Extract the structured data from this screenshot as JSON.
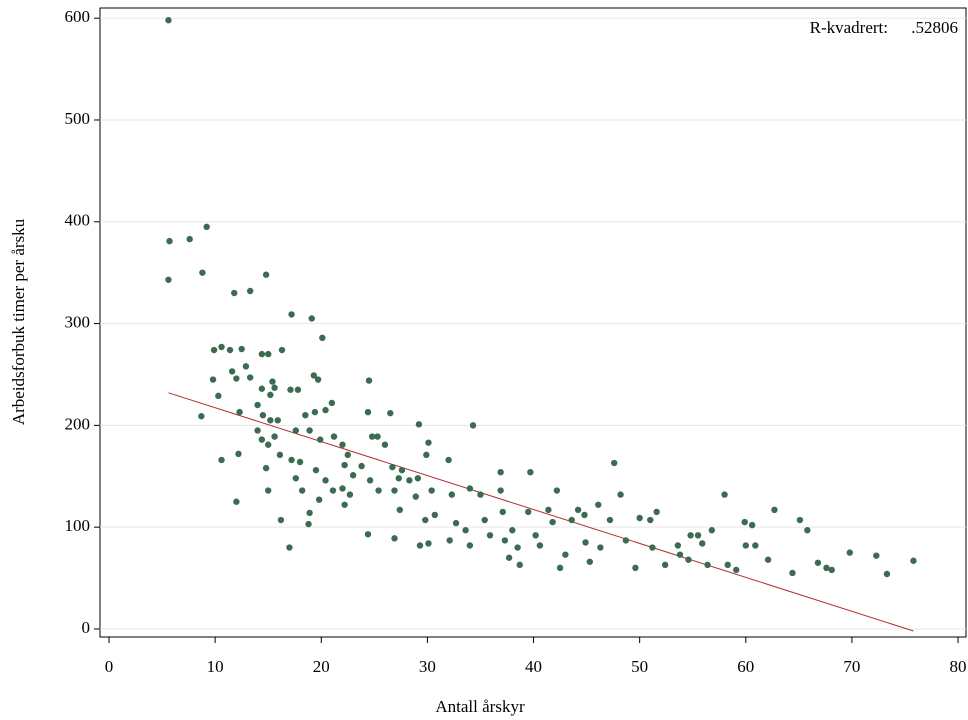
{
  "chart_data": {
    "type": "scatter",
    "x_label": "Antall årskyr",
    "y_label": "Arbeidsforbuk timer per årsku",
    "annotation_label": "R-kvadrert:",
    "annotation_value": ".52806",
    "xlim": [
      -0.85,
      80.75
    ],
    "ylim": [
      -7.9,
      610
    ],
    "xticks": [
      0,
      10,
      20,
      30,
      40,
      50,
      60,
      70,
      80
    ],
    "yticks": [
      0,
      100,
      200,
      300,
      400,
      500,
      600
    ],
    "grid": true,
    "color": "#3b6b50",
    "x": [
      5.6,
      5.7,
      5.6,
      7.6,
      9.2,
      8.8,
      8.7,
      9.9,
      10.6,
      9.8,
      10.3,
      10.6,
      11.8,
      13.3,
      14.8,
      11.4,
      12.5,
      12.9,
      11.6,
      12.0,
      13.3,
      12.3,
      12.2,
      12.0,
      14.4,
      15.0,
      16.3,
      14.4,
      15.2,
      15.4,
      15.6,
      14.0,
      14.5,
      15.2,
      15.9,
      14.0,
      14.4,
      15.0,
      15.6,
      14.8,
      15.0,
      16.1,
      16.2,
      17.0,
      17.2,
      17.1,
      17.8,
      17.6,
      17.2,
      18.0,
      17.6,
      18.2,
      19.1,
      20.1,
      19.3,
      19.7,
      18.5,
      19.4,
      20.4,
      21.0,
      18.9,
      19.9,
      21.2,
      19.5,
      20.4,
      21.1,
      19.8,
      18.8,
      18.9,
      22.0,
      22.5,
      22.2,
      23.0,
      22.0,
      22.7,
      22.2,
      24.5,
      24.4,
      24.8,
      25.3,
      23.8,
      24.6,
      25.4,
      24.4,
      26.5,
      26.0,
      26.7,
      27.3,
      26.9,
      27.4,
      26.9,
      27.6,
      28.3,
      29.1,
      28.9,
      29.2,
      30.1,
      29.9,
      30.4,
      29.3,
      30.1,
      29.8,
      30.7,
      32.0,
      32.3,
      32.1,
      32.7,
      34.3,
      34.0,
      33.6,
      34.0,
      35.0,
      35.4,
      35.9,
      36.9,
      36.9,
      37.1,
      37.3,
      37.7,
      38.0,
      38.5,
      38.7,
      39.7,
      39.5,
      40.2,
      40.6,
      41.4,
      41.8,
      42.2,
      42.5,
      43.0,
      43.6,
      44.2,
      44.9,
      45.3,
      46.1,
      46.3,
      47.2,
      47.6,
      48.2,
      48.7,
      49.6,
      50.0,
      51.0,
      51.2,
      51.6,
      52.4,
      53.6,
      53.8,
      54.6,
      54.8,
      55.5,
      56.4,
      56.8,
      58.0,
      58.3,
      59.1,
      59.9,
      60.0,
      60.6,
      60.9,
      62.1,
      62.7,
      64.4,
      65.1,
      65.8,
      66.8,
      67.6,
      68.1,
      69.8,
      72.3,
      73.3,
      75.8,
      55.9,
      44.8
    ],
    "values": [
      598,
      381,
      343,
      383,
      395,
      350,
      209,
      274,
      277,
      245,
      229,
      166,
      330,
      332,
      348,
      274,
      275,
      258,
      253,
      246,
      247,
      213,
      172,
      125,
      270,
      270,
      274,
      236,
      230,
      243,
      237,
      220,
      210,
      205,
      205,
      195,
      186,
      181,
      189,
      158,
      136,
      171,
      107,
      80,
      309,
      235,
      235,
      195,
      166,
      164,
      148,
      136,
      305,
      286,
      249,
      245,
      210,
      213,
      215,
      222,
      195,
      186,
      189,
      156,
      146,
      136,
      127,
      103,
      114,
      181,
      171,
      161,
      151,
      138,
      132,
      122,
      244,
      213,
      189,
      189,
      160,
      146,
      136,
      93,
      212,
      181,
      159,
      148,
      136,
      117,
      89,
      156,
      146,
      148,
      130,
      201,
      183,
      171,
      136,
      82,
      84,
      107,
      112,
      166,
      132,
      87,
      104,
      200,
      138,
      97,
      82,
      132,
      107,
      92,
      154,
      136,
      115,
      87,
      70,
      97,
      80,
      63,
      154,
      115,
      92,
      82,
      117,
      105,
      136,
      60,
      73,
      107,
      117,
      85,
      66,
      122,
      80,
      107,
      163,
      132,
      87,
      60,
      109,
      107,
      80,
      115,
      63,
      82,
      73,
      68,
      92,
      92,
      63,
      97,
      132,
      63,
      58,
      105,
      82,
      102,
      82,
      68,
      117,
      55,
      107,
      97,
      65,
      60,
      58,
      75,
      72,
      54,
      67,
      84,
      112
    ],
    "fit_line": {
      "color": "#b03030",
      "x": [
        5.6,
        75.8
      ],
      "values": [
        232,
        -2
      ]
    }
  }
}
